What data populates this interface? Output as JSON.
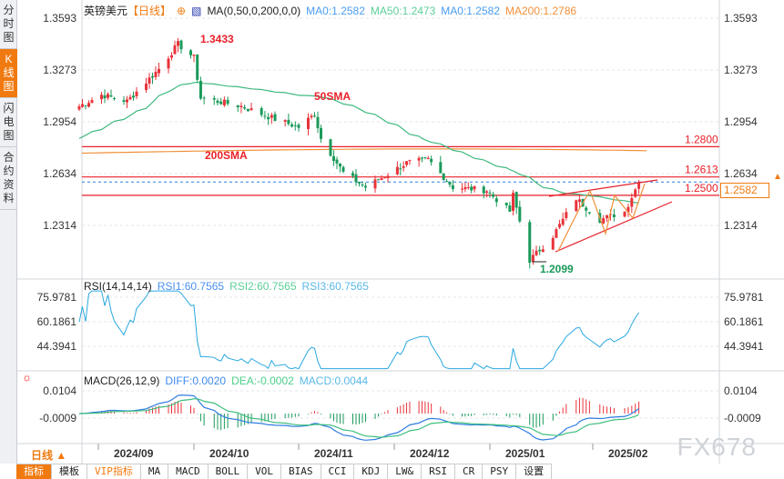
{
  "sidebar": {
    "tabs": [
      {
        "label": "分时图",
        "active": false
      },
      {
        "label": "K线图",
        "active": true
      },
      {
        "label": "闪电图",
        "active": false
      },
      {
        "label": "合约资料",
        "active": false
      }
    ]
  },
  "header": {
    "symbol": "英镑美元",
    "period": "【日线】",
    "indicator": "MA(0,50,0,200,0,0)",
    "ma0": "MA0:1.2582",
    "ma50": "MA50:1.2473",
    "ma0b": "MA0:1.2582",
    "ma200": "MA200:1.2786"
  },
  "colors": {
    "up": "#e8333a",
    "down": "#1a9a5a",
    "ma50": "#3fb97d",
    "ma200": "#f0903a",
    "rsi": "#2aa8e0",
    "diff": "#2f7de1",
    "dea": "#3fbf7f",
    "accent": "#f07a10"
  },
  "price_axis": {
    "left": [
      "1.3593",
      "1.3273",
      "1.2954",
      "1.2634",
      "1.2314"
    ],
    "right": [
      "1.3593",
      "1.3273",
      "1.2954",
      "1.2634",
      "1.2314"
    ],
    "current": "1.2582"
  },
  "levels": [
    {
      "label": "1.2800",
      "value": 1.28
    },
    {
      "label": "1.2613",
      "value": 1.2613
    },
    {
      "label": "1.2500",
      "value": 1.25
    }
  ],
  "annotations": {
    "high": "1.3433",
    "low": "1.2099",
    "sma50": "50SMA",
    "sma200": "200SMA"
  },
  "rsi": {
    "title": "RSI(14,14,14)",
    "rsi1": "RSI1:60.7565",
    "rsi2": "RSI2:60.7565",
    "rsi3": "RSI3:60.7565",
    "axis": [
      "75.9781",
      "60.1861",
      "44.3941"
    ]
  },
  "macd": {
    "title": "MACD(26,12,9)",
    "diff": "DIFF:0.0020",
    "dea": "DEA:-0.0002",
    "macd": "MACD:0.0044",
    "axis": [
      "0.0104",
      "-0.0009"
    ]
  },
  "xaxis": {
    "period_button": "日线 ▲",
    "labels": [
      "2024/09",
      "2024/10",
      "2024/11",
      "2024/12",
      "2025/01",
      "2025/02"
    ]
  },
  "toolbar": [
    "指标",
    "模板",
    "VIP指标",
    "MA",
    "MACD",
    "BOLL",
    "VOL",
    "BIAS",
    "CCI",
    "KDJ",
    "LW&",
    "RSI",
    "CR",
    "PSY",
    "设置"
  ],
  "watermark": "FX678",
  "chart_data": {
    "type": "candlestick",
    "price_path": [
      [
        "2024-08-26",
        1.305
      ],
      [
        "2024-09-02",
        1.312
      ],
      [
        "2024-09-10",
        1.308
      ],
      [
        "2024-09-20",
        1.328
      ],
      [
        "2024-09-26",
        1.3433
      ],
      [
        "2024-10-01",
        1.335
      ],
      [
        "2024-10-03",
        1.31
      ],
      [
        "2024-10-15",
        1.305
      ],
      [
        "2024-10-25",
        1.297
      ],
      [
        "2024-11-01",
        1.292
      ],
      [
        "2024-11-06",
        1.3
      ],
      [
        "2024-11-08",
        1.285
      ],
      [
        "2024-11-15",
        1.264
      ],
      [
        "2024-11-22",
        1.255
      ],
      [
        "2024-12-05",
        1.27
      ],
      [
        "2024-12-12",
        1.272
      ],
      [
        "2024-12-20",
        1.255
      ],
      [
        "2024-12-31",
        1.253
      ],
      [
        "2025-01-07",
        1.24
      ],
      [
        "2025-01-08",
        1.25
      ],
      [
        "2025-01-13",
        1.2099
      ],
      [
        "2025-01-20",
        1.225
      ],
      [
        "2025-01-27",
        1.248
      ],
      [
        "2025-02-03",
        1.235
      ],
      [
        "2025-02-10",
        1.24
      ],
      [
        "2025-02-14",
        1.2582
      ]
    ],
    "yrange": [
      1.2099,
      1.3593
    ],
    "sma200": [
      1.276,
      1.2786
    ]
  }
}
